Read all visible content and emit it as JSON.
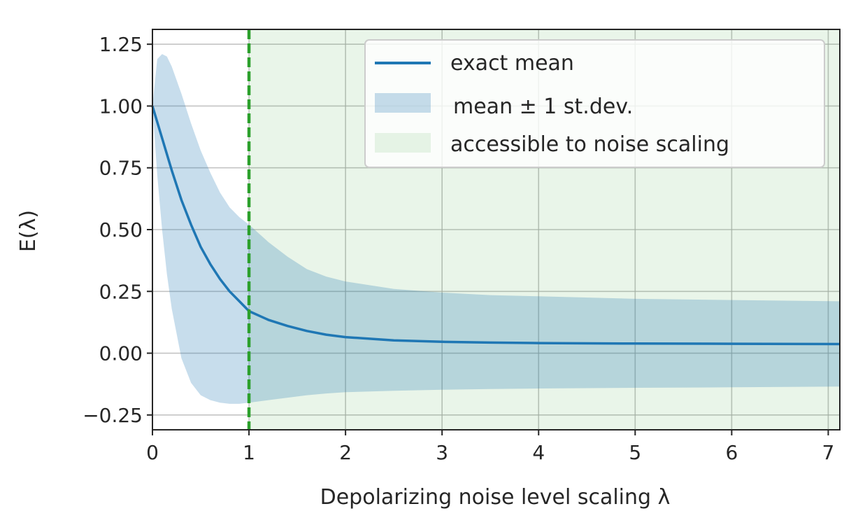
{
  "chart_data": {
    "type": "line",
    "xlabel": "Depolarizing noise level scaling λ",
    "ylabel": "E(λ)",
    "xlim": [
      0,
      7.12
    ],
    "ylim": [
      -0.31,
      1.31
    ],
    "x_ticks": [
      0,
      1,
      2,
      3,
      4,
      5,
      6,
      7
    ],
    "x_tick_labels": [
      "0",
      "1",
      "2",
      "3",
      "4",
      "5",
      "6",
      "7"
    ],
    "y_ticks": [
      -0.25,
      0.0,
      0.25,
      0.5,
      0.75,
      1.0,
      1.25
    ],
    "y_tick_labels": [
      "−0.25",
      "0.00",
      "0.25",
      "0.50",
      "0.75",
      "1.00",
      "1.25"
    ],
    "grid": true,
    "legend_position": "upper-right",
    "series": [
      {
        "name": "exact mean",
        "kind": "line",
        "color": "#1f77b4",
        "x": [
          0,
          0.1,
          0.2,
          0.3,
          0.4,
          0.5,
          0.6,
          0.7,
          0.8,
          0.9,
          1.0,
          1.2,
          1.4,
          1.6,
          1.8,
          2.0,
          2.5,
          3.0,
          3.5,
          4.0,
          5.0,
          6.0,
          7.12
        ],
        "y": [
          1.0,
          0.87,
          0.74,
          0.62,
          0.52,
          0.43,
          0.36,
          0.3,
          0.25,
          0.21,
          0.17,
          0.135,
          0.11,
          0.09,
          0.075,
          0.065,
          0.052,
          0.046,
          0.043,
          0.041,
          0.039,
          0.038,
          0.037
        ]
      },
      {
        "name": "mean ± 1 st.dev.",
        "kind": "band",
        "color": "#1f77b4",
        "x": [
          0,
          0.05,
          0.1,
          0.15,
          0.2,
          0.3,
          0.4,
          0.5,
          0.6,
          0.7,
          0.8,
          0.9,
          1.0,
          1.2,
          1.4,
          1.6,
          1.8,
          2.0,
          2.5,
          3.0,
          3.5,
          4.0,
          5.0,
          6.0,
          7.12
        ],
        "upper": [
          1.0,
          1.19,
          1.21,
          1.2,
          1.16,
          1.05,
          0.93,
          0.82,
          0.73,
          0.65,
          0.59,
          0.55,
          0.52,
          0.45,
          0.39,
          0.34,
          0.31,
          0.29,
          0.26,
          0.245,
          0.235,
          0.23,
          0.22,
          0.215,
          0.21
        ],
        "lower": [
          1.0,
          0.72,
          0.5,
          0.32,
          0.18,
          -0.02,
          -0.12,
          -0.17,
          -0.19,
          -0.2,
          -0.205,
          -0.205,
          -0.2,
          -0.19,
          -0.18,
          -0.17,
          -0.163,
          -0.158,
          -0.152,
          -0.148,
          -0.145,
          -0.143,
          -0.14,
          -0.138,
          -0.135
        ]
      },
      {
        "name": "accessible to noise scaling",
        "kind": "region",
        "color": "#2ca02c",
        "x_range": [
          1,
          7.12
        ]
      }
    ],
    "reference_line": {
      "x": 1,
      "style": "dashed",
      "color": "#2ca02c"
    }
  }
}
